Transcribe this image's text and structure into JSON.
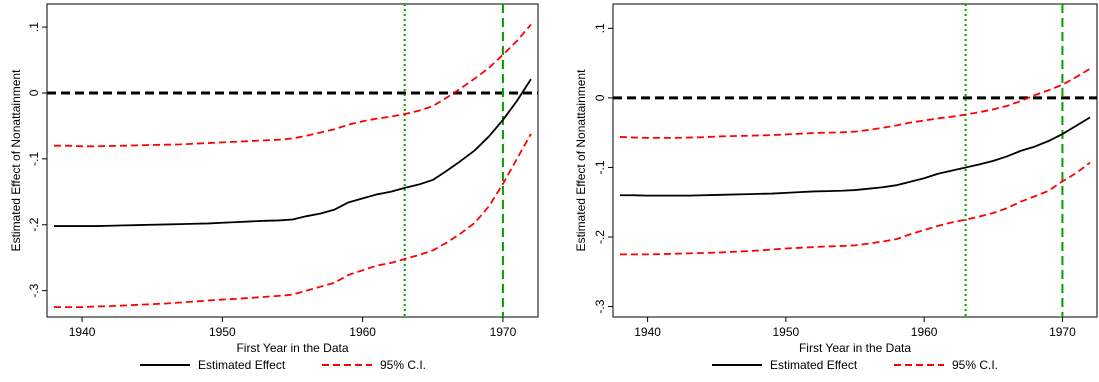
{
  "colors": {
    "estimate": "#000000",
    "ci": "#ff0000",
    "zero_line": "#000000",
    "vline": "#00a000",
    "frame": "#000000"
  },
  "legend": {
    "estimate_label": "Estimated Effect",
    "ci_label": "95% C.I."
  },
  "chart_data": [
    {
      "type": "line",
      "xlabel": "First Year in the Data",
      "ylabel": "Estimated Effect of Nonattainment",
      "xlim": [
        1937.5,
        1972.5
      ],
      "ylim": [
        -0.34,
        0.135
      ],
      "xticks": [
        1940,
        1950,
        1960,
        1970
      ],
      "yticks": [
        -0.3,
        -0.2,
        -0.1,
        0,
        0.1
      ],
      "ytick_labels": [
        "-.3",
        "-.2",
        "-.1",
        "0",
        ".1"
      ],
      "grid": false,
      "legend_position": "bottom",
      "hlines": [
        {
          "y": 0,
          "style": "dashed",
          "color": "black"
        }
      ],
      "vlines": [
        {
          "x": 1963,
          "style": "dotted",
          "color": "green"
        },
        {
          "x": 1970,
          "style": "dashed",
          "color": "green"
        }
      ],
      "x": [
        1938,
        1939,
        1940,
        1941,
        1942,
        1943,
        1944,
        1945,
        1946,
        1947,
        1948,
        1949,
        1950,
        1951,
        1952,
        1953,
        1954,
        1955,
        1956,
        1957,
        1958,
        1959,
        1960,
        1961,
        1962,
        1963,
        1964,
        1965,
        1966,
        1967,
        1968,
        1969,
        1970,
        1971,
        1972
      ],
      "series": [
        {
          "name": "Estimated Effect",
          "style": "solid",
          "values": [
            -0.202,
            -0.202,
            -0.202,
            -0.202,
            -0.2015,
            -0.201,
            -0.2005,
            -0.2,
            -0.1995,
            -0.199,
            -0.1985,
            -0.198,
            -0.197,
            -0.196,
            -0.195,
            -0.194,
            -0.1935,
            -0.192,
            -0.187,
            -0.183,
            -0.177,
            -0.166,
            -0.16,
            -0.154,
            -0.15,
            -0.144,
            -0.139,
            -0.132,
            -0.118,
            -0.103,
            -0.087,
            -0.066,
            -0.041,
            -0.012,
            0.021
          ]
        },
        {
          "name": "95% C.I.",
          "style": "dashed",
          "values": [
            -0.08,
            -0.08,
            -0.081,
            -0.081,
            -0.0805,
            -0.08,
            -0.0795,
            -0.079,
            -0.0785,
            -0.078,
            -0.077,
            -0.076,
            -0.075,
            -0.074,
            -0.073,
            -0.072,
            -0.071,
            -0.069,
            -0.065,
            -0.06,
            -0.055,
            -0.048,
            -0.043,
            -0.039,
            -0.036,
            -0.032,
            -0.027,
            -0.02,
            -0.007,
            0.007,
            0.022,
            0.038,
            0.058,
            0.079,
            0.104
          ]
        },
        {
          "style": "dashed",
          "values": [
            -0.325,
            -0.325,
            -0.325,
            -0.324,
            -0.3235,
            -0.3225,
            -0.3215,
            -0.3205,
            -0.3195,
            -0.318,
            -0.3165,
            -0.315,
            -0.3135,
            -0.3125,
            -0.311,
            -0.3095,
            -0.308,
            -0.306,
            -0.3,
            -0.294,
            -0.288,
            -0.276,
            -0.269,
            -0.262,
            -0.258,
            -0.252,
            -0.246,
            -0.239,
            -0.227,
            -0.213,
            -0.197,
            -0.172,
            -0.138,
            -0.1,
            -0.062
          ]
        }
      ]
    },
    {
      "type": "line",
      "xlabel": "First Year in the Data",
      "ylabel": "Estimated Effect of Nonattainment",
      "xlim": [
        1937.5,
        1972.5
      ],
      "ylim": [
        -0.315,
        0.135
      ],
      "xticks": [
        1940,
        1950,
        1960,
        1970
      ],
      "yticks": [
        -0.3,
        -0.2,
        -0.1,
        0,
        0.1
      ],
      "ytick_labels": [
        "-.3",
        "-.2",
        "-.1",
        "0",
        ".1"
      ],
      "grid": false,
      "legend_position": "bottom",
      "hlines": [
        {
          "y": 0,
          "style": "dashed",
          "color": "black"
        }
      ],
      "vlines": [
        {
          "x": 1963,
          "style": "dotted",
          "color": "green"
        },
        {
          "x": 1970,
          "style": "dashed",
          "color": "green"
        }
      ],
      "x": [
        1938,
        1939,
        1940,
        1941,
        1942,
        1943,
        1944,
        1945,
        1946,
        1947,
        1948,
        1949,
        1950,
        1951,
        1952,
        1953,
        1954,
        1955,
        1956,
        1957,
        1958,
        1959,
        1960,
        1961,
        1962,
        1963,
        1964,
        1965,
        1966,
        1967,
        1968,
        1969,
        1970,
        1971,
        1972
      ],
      "series": [
        {
          "name": "Estimated Effect",
          "style": "solid",
          "values": [
            -0.14,
            -0.14,
            -0.1405,
            -0.1405,
            -0.1405,
            -0.1405,
            -0.14,
            -0.1395,
            -0.139,
            -0.1385,
            -0.138,
            -0.1375,
            -0.1365,
            -0.1355,
            -0.1345,
            -0.134,
            -0.1335,
            -0.1325,
            -0.1305,
            -0.1285,
            -0.1255,
            -0.1205,
            -0.1155,
            -0.109,
            -0.1045,
            -0.1,
            -0.0955,
            -0.0905,
            -0.084,
            -0.076,
            -0.07,
            -0.062,
            -0.052,
            -0.04,
            -0.028
          ]
        },
        {
          "name": "95% C.I.",
          "style": "dashed",
          "values": [
            -0.056,
            -0.057,
            -0.0575,
            -0.0575,
            -0.0575,
            -0.057,
            -0.0565,
            -0.0555,
            -0.055,
            -0.0545,
            -0.054,
            -0.0535,
            -0.0525,
            -0.0515,
            -0.0505,
            -0.05,
            -0.0495,
            -0.0485,
            -0.046,
            -0.043,
            -0.0395,
            -0.0355,
            -0.0325,
            -0.0295,
            -0.027,
            -0.024,
            -0.0205,
            -0.0165,
            -0.0115,
            -0.0045,
            0.004,
            0.011,
            0.019,
            0.03,
            0.042
          ]
        },
        {
          "style": "dashed",
          "values": [
            -0.225,
            -0.225,
            -0.225,
            -0.2245,
            -0.224,
            -0.2235,
            -0.223,
            -0.2225,
            -0.2215,
            -0.2205,
            -0.2195,
            -0.218,
            -0.2165,
            -0.2155,
            -0.2145,
            -0.2135,
            -0.213,
            -0.212,
            -0.2095,
            -0.2065,
            -0.203,
            -0.196,
            -0.19,
            -0.184,
            -0.179,
            -0.175,
            -0.1705,
            -0.1655,
            -0.1585,
            -0.149,
            -0.1415,
            -0.1335,
            -0.12,
            -0.108,
            -0.093
          ]
        }
      ]
    }
  ]
}
